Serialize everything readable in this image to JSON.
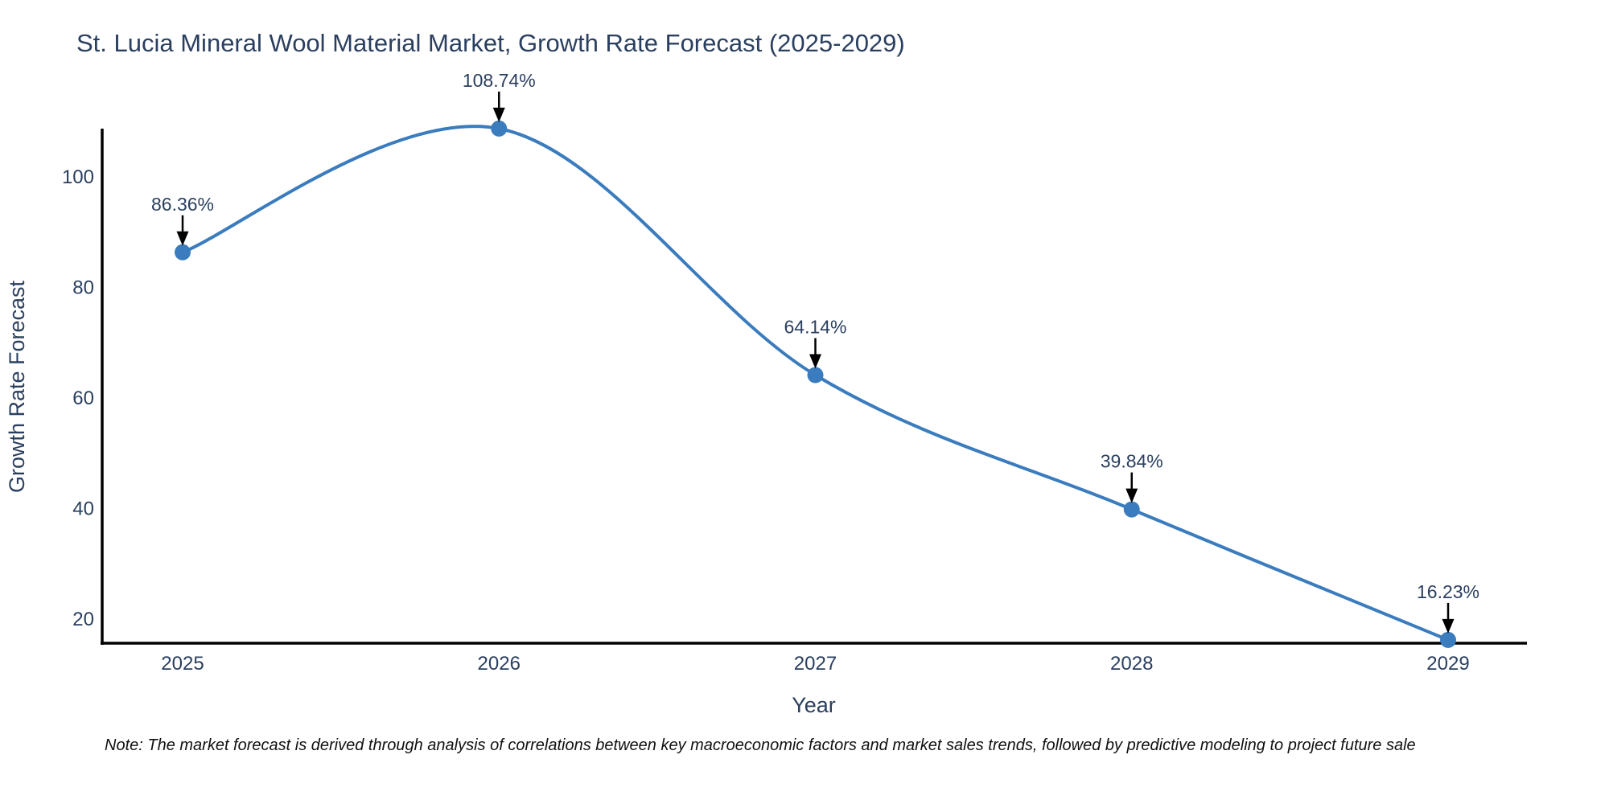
{
  "title": "St. Lucia Mineral Wool Material Market, Growth Rate Forecast (2025-2029)",
  "note": {
    "text": "Note: The market forecast is derived through analysis of correlations between key macroeconomic factors and market sales trends, followed by predictive modeling to project future sale"
  },
  "chart_data": {
    "type": "line",
    "title": "St. Lucia Mineral Wool Material Market, Growth Rate Forecast (2025-2029)",
    "xlabel": "Year",
    "ylabel": "Growth Rate Forecast",
    "categories": [
      "2025",
      "2026",
      "2027",
      "2028",
      "2029"
    ],
    "x": [
      2025,
      2026,
      2027,
      2028,
      2029
    ],
    "series": [
      {
        "name": "Growth Rate Forecast",
        "values": [
          86.36,
          108.74,
          64.14,
          39.84,
          16.23
        ],
        "point_labels": [
          "86.36%",
          "108.74%",
          "64.14%",
          "39.84%",
          "16.23%"
        ]
      }
    ],
    "y_ticks": [
      20,
      40,
      60,
      80,
      100
    ],
    "ylim": [
      15.6,
      108.8
    ],
    "grid": false,
    "legend": false,
    "line_shape": "spline",
    "annotation_style": "label-with-down-arrow",
    "colors": {
      "line": "#3a7cbe",
      "marker": "#3a7cbe",
      "axis": "#000000",
      "tick_text": "#2a3f5f",
      "title_text": "#2a3f5f",
      "annotation_text": "#2a3f5f",
      "arrow": "#000000"
    }
  }
}
